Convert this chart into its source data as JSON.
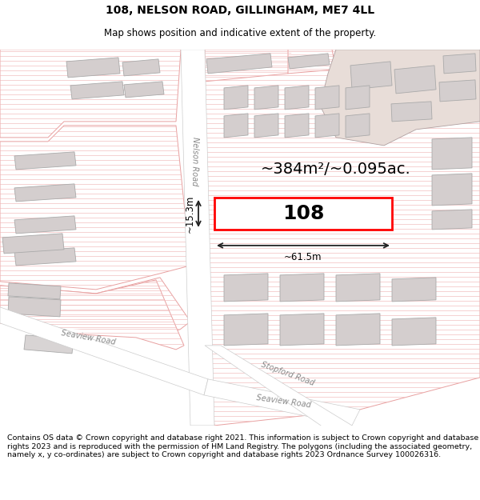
{
  "title": "108, NELSON ROAD, GILLINGHAM, ME7 4LL",
  "subtitle": "Map shows position and indicative extent of the property.",
  "footer": "Contains OS data © Crown copyright and database right 2021. This information is subject to Crown copyright and database rights 2023 and is reproduced with the permission of HM Land Registry. The polygons (including the associated geometry, namely x, y co-ordinates) are subject to Crown copyright and database rights 2023 Ordnance Survey 100026316.",
  "area_label": "~384m²/~0.095ac.",
  "number_label": "108",
  "width_label": "~61.5m",
  "height_label": "~15.3m",
  "map_bg": "#ffffff",
  "parcel_fill": "#ffffff",
  "parcel_edge": "#e8a0a0",
  "building_fill": "#d8d0d0",
  "building_edge": "#aaaaaa",
  "road_fill": "#f0eeee",
  "road_edge": "#cccccc",
  "highlight_edge": "#ff0000",
  "highlight_fill": "#ffffff",
  "dim_color": "#222222",
  "title_fontsize": 10,
  "subtitle_fontsize": 8.5,
  "footer_fontsize": 6.8,
  "area_fontsize": 14,
  "number_fontsize": 18,
  "dim_fontsize": 8.5,
  "road_label_fontsize": 7,
  "road_label_color": "#888888"
}
